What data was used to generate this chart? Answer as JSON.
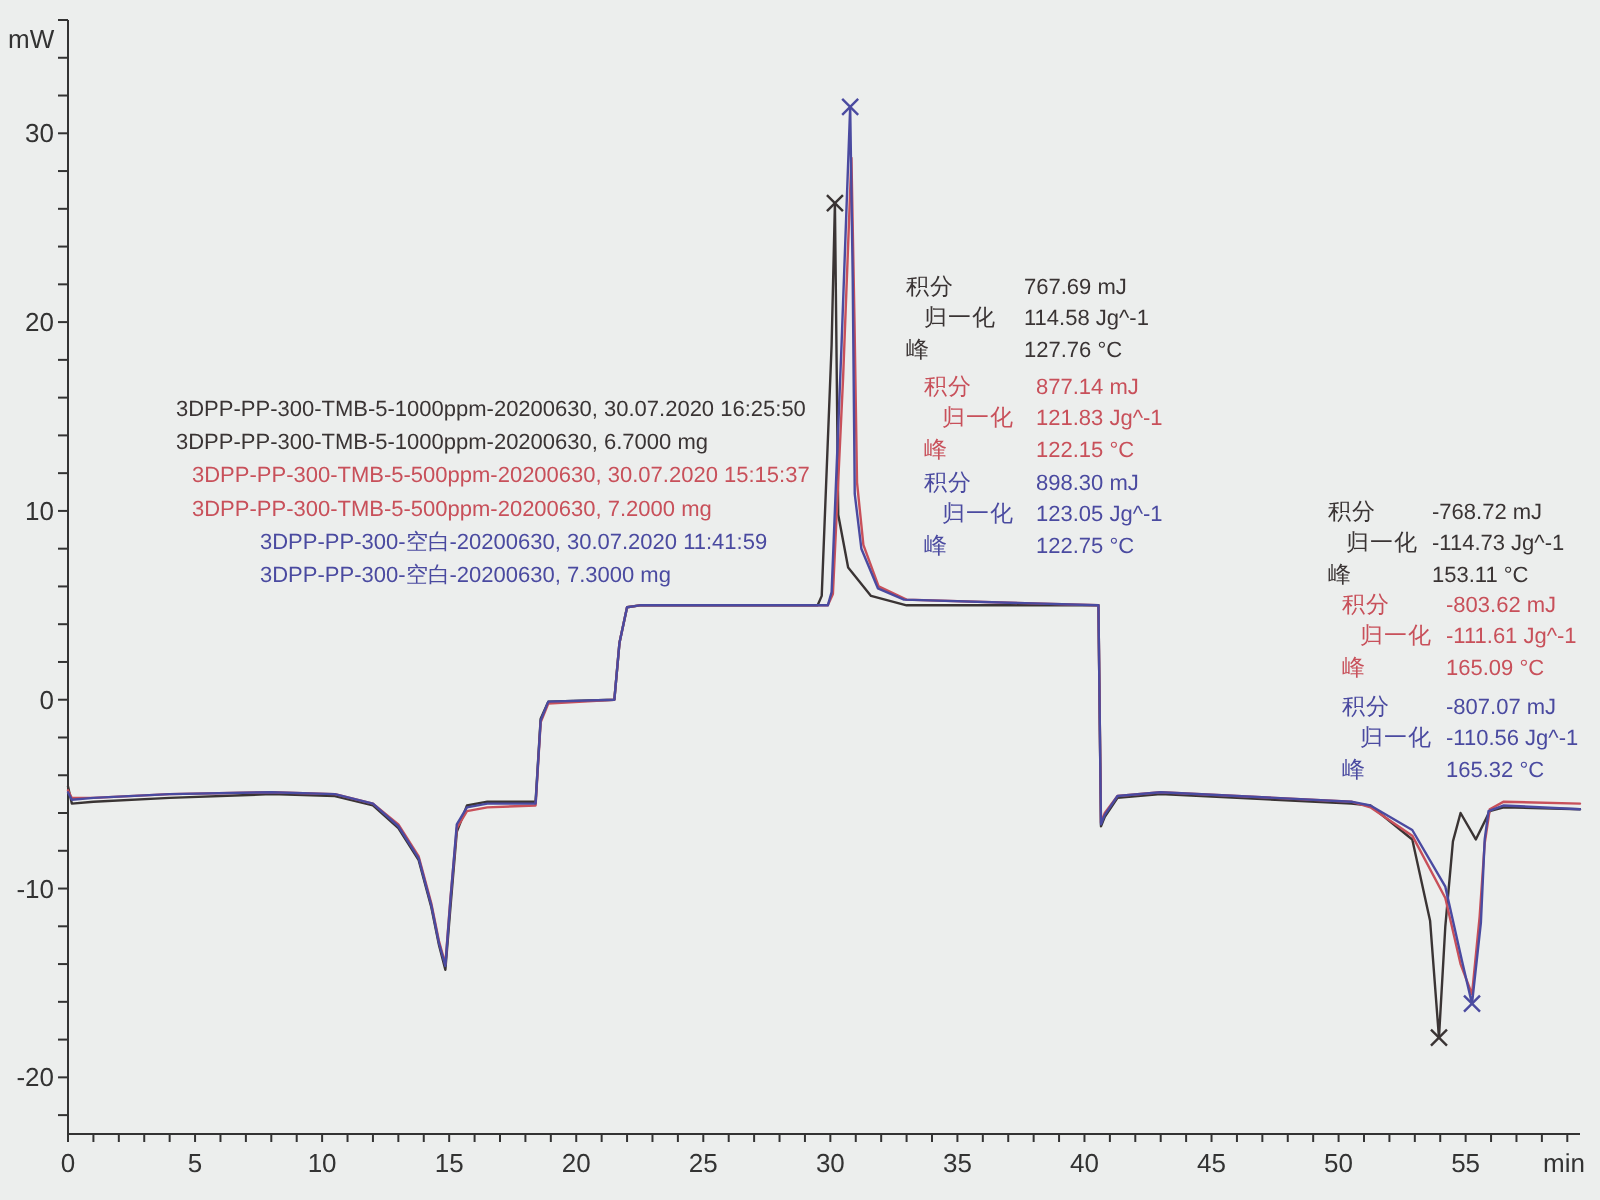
{
  "chart_data": {
    "type": "line",
    "xlabel": "min",
    "ylabel": "mW",
    "xlim": [
      0,
      59.5
    ],
    "xticks": [
      0,
      {
        "value": 1,
        "label": null
      },
      {
        "value": 2,
        "label": null
      },
      {
        "value": 3,
        "label": null
      },
      {
        "value": 4,
        "label": null
      },
      5,
      {
        "value": 6,
        "label": null
      },
      {
        "value": 7,
        "label": null
      },
      {
        "value": 8,
        "label": null
      },
      {
        "value": 9,
        "label": null
      },
      10,
      {
        "value": 11,
        "label": null
      },
      {
        "value": 12,
        "label": null
      },
      {
        "value": 13,
        "label": null
      },
      {
        "value": 14,
        "label": null
      },
      15,
      {
        "value": 16,
        "label": null
      },
      {
        "value": 17,
        "label": null
      },
      {
        "value": 18,
        "label": null
      },
      {
        "value": 19,
        "label": null
      },
      20,
      {
        "value": 21,
        "label": null
      },
      {
        "value": 22,
        "label": null
      },
      {
        "value": 23,
        "label": null
      },
      {
        "value": 24,
        "label": null
      },
      25,
      {
        "value": 26,
        "label": null
      },
      {
        "value": 27,
        "label": null
      },
      {
        "value": 28,
        "label": null
      },
      {
        "value": 29,
        "label": null
      },
      30,
      {
        "value": 31,
        "label": null
      },
      {
        "value": 32,
        "label": null
      },
      {
        "value": 33,
        "label": null
      },
      {
        "value": 34,
        "label": null
      },
      35,
      {
        "value": 36,
        "label": null
      },
      {
        "value": 37,
        "label": null
      },
      {
        "value": 38,
        "label": null
      },
      {
        "value": 39,
        "label": null
      },
      40,
      {
        "value": 41,
        "label": null
      },
      {
        "value": 42,
        "label": null
      },
      {
        "value": 43,
        "label": null
      },
      {
        "value": 44,
        "label": null
      },
      45,
      {
        "value": 46,
        "label": null
      },
      {
        "value": 47,
        "label": null
      },
      {
        "value": 48,
        "label": null
      },
      {
        "value": 49,
        "label": null
      },
      50,
      {
        "value": 51,
        "label": null
      },
      {
        "value": 52,
        "label": null
      },
      {
        "value": 53,
        "label": null
      },
      {
        "value": 54,
        "label": null
      },
      55,
      {
        "value": 56,
        "label": null
      },
      {
        "value": 57,
        "label": null
      },
      {
        "value": 58,
        "label": null
      },
      {
        "value": 59,
        "label": null
      }
    ],
    "ylim": [
      -23,
      36
    ],
    "yticks": [
      {
        "value": -22,
        "label": null
      },
      -20,
      {
        "value": -18,
        "label": null
      },
      {
        "value": -16,
        "label": null
      },
      {
        "value": -14,
        "label": null
      },
      {
        "value": -12,
        "label": null
      },
      -10,
      {
        "value": -8,
        "label": null
      },
      {
        "value": -6,
        "label": null
      },
      {
        "value": -4,
        "label": null
      },
      {
        "value": -2,
        "label": null
      },
      0,
      {
        "value": 2,
        "label": null
      },
      {
        "value": 4,
        "label": null
      },
      {
        "value": 6,
        "label": null
      },
      {
        "value": 8,
        "label": null
      },
      10,
      {
        "value": 12,
        "label": null
      },
      {
        "value": 14,
        "label": null
      },
      {
        "value": 16,
        "label": null
      },
      {
        "value": 18,
        "label": null
      },
      20,
      {
        "value": 22,
        "label": null
      },
      {
        "value": 24,
        "label": null
      },
      {
        "value": 26,
        "label": null
      },
      {
        "value": 28,
        "label": null
      },
      30,
      {
        "value": 32,
        "label": null
      },
      {
        "value": 34,
        "label": null
      },
      {
        "value": 36,
        "label": null
      }
    ],
    "legend": "left",
    "series": [
      {
        "name": "3DPP-PP-300-TMB-5-1000ppm-20200630, 30.07.2020 16:25:50",
        "color": "#3a3434",
        "x": [
          0,
          0.15,
          1,
          4,
          8,
          10.5,
          12,
          13,
          13.8,
          14.3,
          14.6,
          14.85,
          15.05,
          15.3,
          15.7,
          16.5,
          18.4,
          18.6,
          18.9,
          21.5,
          21.7,
          22.0,
          22.5,
          29.5,
          29.66,
          30.05,
          30.18,
          30.31,
          30.7,
          31.6,
          33,
          40.55,
          40.65,
          40.8,
          41.3,
          43,
          46,
          50.5,
          51.25,
          52.9,
          53.6,
          53.95,
          54.2,
          54.5,
          54.8,
          55.4,
          55.95,
          56.5,
          59.5
        ],
        "values": [
          -4.6,
          -5.5,
          -5.4,
          -5.2,
          -5.0,
          -5.1,
          -5.6,
          -6.8,
          -8.5,
          -11,
          -13,
          -14.3,
          -11,
          -7,
          -5.6,
          -5.4,
          -5.4,
          -1,
          -0.1,
          0.0,
          3,
          4.9,
          5.0,
          5.0,
          5.5,
          18.8,
          26.3,
          9.8,
          7.0,
          5.5,
          5.0,
          5.0,
          -6.7,
          -6.2,
          -5.2,
          -5.0,
          -5.2,
          -5.5,
          -5.6,
          -7.4,
          -11.7,
          -17.9,
          -12,
          -7.5,
          -6.0,
          -7.4,
          -5.9,
          -5.7,
          -5.8
        ]
      },
      {
        "name": "3DPP-PP-300-TMB-5-500ppm-20200630, 30.07.2020 15:15:37",
        "color": "#c8505a",
        "x": [
          0,
          0.15,
          1,
          4,
          8,
          10.5,
          12,
          13,
          13.8,
          14.3,
          14.6,
          14.85,
          15.05,
          15.3,
          15.7,
          16.5,
          18.4,
          18.6,
          18.9,
          21.5,
          21.7,
          22.0,
          22.5,
          29.9,
          30.1,
          30.5,
          30.83,
          30.95,
          31.05,
          31.3,
          31.9,
          33,
          40.55,
          40.65,
          40.8,
          41.3,
          43,
          46,
          50.5,
          51.25,
          52.9,
          54.2,
          54.8,
          55.25,
          55.55,
          55.75,
          55.95,
          56.5,
          59.5
        ],
        "values": [
          -4.8,
          -5.2,
          -5.2,
          -5.0,
          -4.9,
          -5.0,
          -5.5,
          -6.6,
          -8.3,
          -10.8,
          -12.8,
          -14.0,
          -10.5,
          -6.8,
          -5.9,
          -5.7,
          -5.6,
          -1.2,
          -0.2,
          0.0,
          3,
          4.9,
          5.0,
          5.0,
          5.6,
          17,
          28.7,
          20,
          11.5,
          8.2,
          6.0,
          5.3,
          5.0,
          -6.5,
          -6.0,
          -5.1,
          -4.9,
          -5.1,
          -5.4,
          -5.7,
          -7.2,
          -10.5,
          -14,
          -15.6,
          -11.5,
          -7.6,
          -5.8,
          -5.4,
          -5.5
        ]
      },
      {
        "name": "3DPP-PP-300-空白-20200630, 30.07.2020 11:41:59",
        "color": "#4a4aa0",
        "x": [
          0,
          0.15,
          1,
          4,
          8,
          10.5,
          12,
          13,
          13.8,
          14.3,
          14.6,
          14.85,
          15.05,
          15.3,
          15.7,
          16.5,
          18.4,
          18.6,
          18.9,
          21.5,
          21.7,
          22.0,
          22.5,
          29.9,
          30.05,
          30.44,
          30.78,
          30.88,
          30.96,
          31.22,
          31.87,
          32.9,
          40.55,
          40.65,
          40.8,
          41.3,
          43,
          46,
          50.5,
          51.25,
          52.9,
          54.2,
          54.85,
          55.25,
          55.6,
          55.75,
          55.9,
          56.5,
          59.5
        ],
        "values": [
          -4.9,
          -5.3,
          -5.2,
          -5.0,
          -4.9,
          -5.0,
          -5.5,
          -6.7,
          -8.4,
          -10.9,
          -12.9,
          -14.1,
          -10.6,
          -6.6,
          -5.7,
          -5.5,
          -5.5,
          -1.1,
          -0.1,
          0.0,
          3,
          4.9,
          5.0,
          5.0,
          5.7,
          18.8,
          31.4,
          22.3,
          10.9,
          8.0,
          5.9,
          5.3,
          5.0,
          -6.6,
          -6.1,
          -5.1,
          -4.9,
          -5.1,
          -5.4,
          -5.6,
          -6.9,
          -9.9,
          -13.8,
          -16.1,
          -11.8,
          -7.4,
          -5.9,
          -5.6,
          -5.8
        ]
      },
      {
        "type": "scatter",
        "marker": "cross",
        "colors": [
          "#3a3434",
          "#4a4aa0",
          "#3a3434",
          "#4a4aa0"
        ],
        "x": [
          30.18,
          30.78,
          53.95,
          55.25
        ],
        "values": [
          26.3,
          31.4,
          -17.9,
          -16.1
        ]
      }
    ],
    "annotations": [
      "3DPP-PP-300-TMB-5-1000ppm-20200630, 6.7000 mg",
      "3DPP-PP-300-TMB-5-500ppm-20200630, 7.2000 mg",
      "3DPP-PP-300-空白-20200630, 7.3000 mg",
      "积分",
      "767.69 mJ",
      "归一化",
      "114.58 Jg^-1",
      "峰",
      "127.76 °C",
      "积分",
      "877.14 mJ",
      "归一化",
      "121.83 Jg^-1",
      "峰",
      "122.15 °C",
      "积分",
      "898.30 mJ",
      "归一化",
      "123.05 Jg^-1",
      "峰",
      "122.75 °C",
      "积分",
      "-768.72 mJ",
      "归一化",
      "-114.73 Jg^-1",
      "峰",
      "153.11 °C",
      "积分",
      "-803.62 mJ",
      "归一化",
      "-111.61 Jg^-1",
      "峰",
      "165.09 °C",
      "积分",
      "-807.07 mJ",
      "归一化",
      "-110.56 Jg^-1",
      "峰",
      "165.32 °C"
    ]
  }
}
